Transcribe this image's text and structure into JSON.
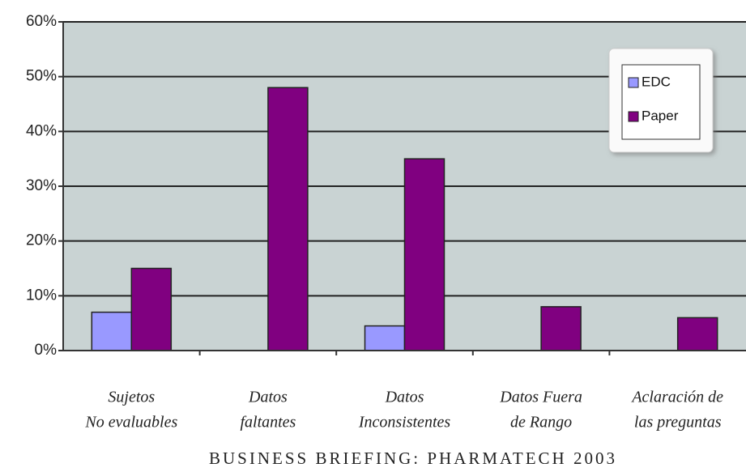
{
  "chart_data": {
    "type": "bar",
    "categories": [
      [
        "Sujetos",
        "No evaluables"
      ],
      [
        "Datos",
        "faltantes"
      ],
      [
        "Datos",
        "Inconsistentes"
      ],
      [
        "Datos Fuera",
        "de Rango"
      ],
      [
        "Aclaración de",
        "las preguntas"
      ]
    ],
    "series": [
      {
        "name": "EDC",
        "color": "#9999ff",
        "values": [
          7,
          0,
          4.5,
          0,
          0
        ]
      },
      {
        "name": "Paper",
        "color": "#800080",
        "values": [
          15,
          48,
          35,
          8,
          6
        ]
      }
    ],
    "ylim": [
      0,
      60
    ],
    "yticks": [
      {
        "value": 0,
        "label": "0%"
      },
      {
        "value": 10,
        "label": "10%"
      },
      {
        "value": 20,
        "label": "20%"
      },
      {
        "value": 30,
        "label": "30%"
      },
      {
        "value": 40,
        "label": "40%"
      },
      {
        "value": 50,
        "label": "50%"
      },
      {
        "value": 60,
        "label": "60%"
      }
    ],
    "grid": true,
    "legend": "upper right",
    "footer": "BUSINESS BRIEFING: PHARMATECH 2003"
  }
}
